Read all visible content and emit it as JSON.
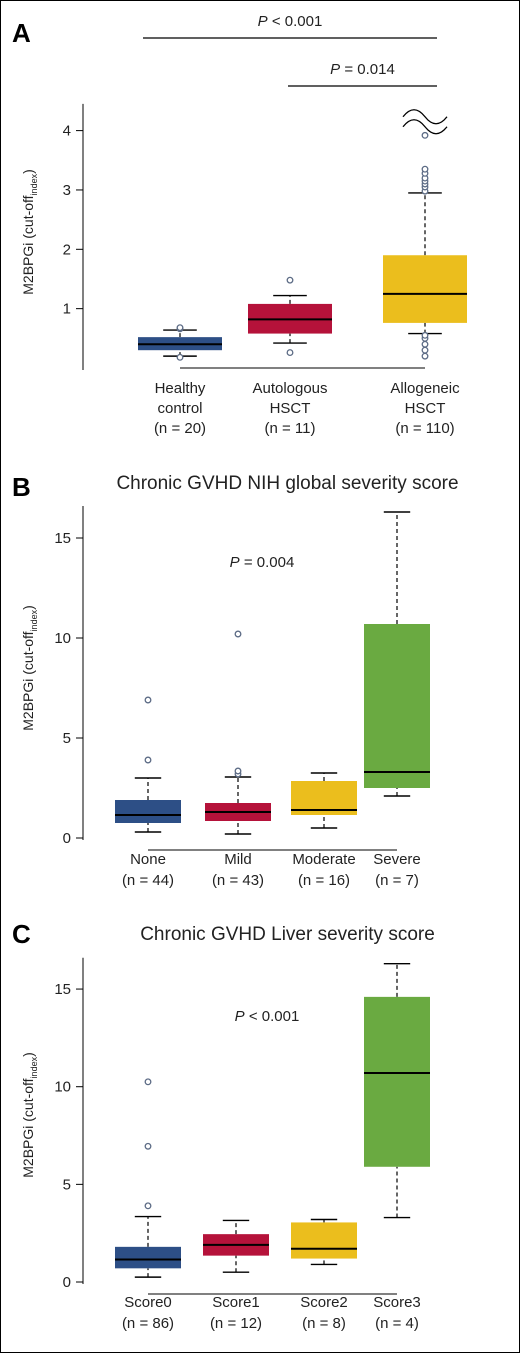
{
  "colors": {
    "blue": "#2d4f86",
    "red": "#b5123a",
    "yellow": "#ebbe1d",
    "green": "#6aaa41",
    "axis": "#000000",
    "outlier": "#5c6b85"
  },
  "chart_data": [
    {
      "type": "box",
      "panel_letter": "A",
      "title": "",
      "ylabel_main": "M2BPGi (cut-off",
      "ylabel_sub": "index",
      "ylabel_close": ")",
      "ylim": [
        0,
        4.6
      ],
      "yticks": [
        1,
        2,
        3,
        4
      ],
      "axis_break_at": 4.2,
      "categories": [
        {
          "lines": [
            "Healthy",
            "control",
            "(n = 20)"
          ],
          "color": "blue",
          "whisker_low": 0.2,
          "q1": 0.3,
          "median": 0.4,
          "q3": 0.52,
          "whisker_high": 0.64,
          "outliers": [
            0.18,
            0.66,
            0.68
          ]
        },
        {
          "lines": [
            "Autologous",
            "HSCT",
            "(n = 11)"
          ],
          "color": "red",
          "whisker_low": 0.42,
          "q1": 0.58,
          "median": 0.82,
          "q3": 1.08,
          "whisker_high": 1.22,
          "outliers": [
            0.26,
            1.48
          ]
        },
        {
          "lines": [
            "Allogeneic",
            "HSCT",
            "(n = 110)"
          ],
          "color": "yellow",
          "whisker_low": 0.58,
          "q1": 0.76,
          "median": 1.25,
          "q3": 1.9,
          "whisker_high": 2.95,
          "outliers": [
            0.2,
            0.3,
            0.4,
            0.5,
            0.55,
            2.98,
            3.05,
            3.1,
            3.15,
            3.2,
            3.28,
            3.35,
            3.92
          ]
        }
      ],
      "brackets": [
        {
          "from": 0,
          "to": 2,
          "p_italic": "P",
          "p_rest": " < 0.001"
        },
        {
          "from": 1,
          "to": 2,
          "p_italic": "P",
          "p_rest": " = 0.014"
        }
      ]
    },
    {
      "type": "box",
      "panel_letter": "B",
      "title": "Chronic GVHD NIH global severity score",
      "ylabel_main": "M2BPGi (cut-off",
      "ylabel_sub": "index",
      "ylabel_close": ")",
      "ylim": [
        0,
        17
      ],
      "yticks": [
        0,
        5,
        10,
        15
      ],
      "p_italic": "P",
      "p_rest": " = 0.004",
      "categories": [
        {
          "lines": [
            "None",
            "(n = 44)"
          ],
          "color": "blue",
          "whisker_low": 0.3,
          "q1": 0.75,
          "median": 1.15,
          "q3": 1.9,
          "whisker_high": 3.0,
          "outliers": [
            3.9,
            6.9
          ]
        },
        {
          "lines": [
            "Mild",
            "(n = 43)"
          ],
          "color": "red",
          "whisker_low": 0.2,
          "q1": 0.85,
          "median": 1.3,
          "q3": 1.75,
          "whisker_high": 3.05,
          "outliers": [
            3.2,
            3.35,
            10.2
          ]
        },
        {
          "lines": [
            "Moderate",
            "(n = 16)"
          ],
          "color": "yellow",
          "whisker_low": 0.5,
          "q1": 1.15,
          "median": 1.4,
          "q3": 2.85,
          "whisker_high": 3.25,
          "outliers": []
        },
        {
          "lines": [
            "Severe",
            "(n = 7)"
          ],
          "color": "green",
          "whisker_low": 2.1,
          "q1": 2.5,
          "median": 3.3,
          "q3": 10.7,
          "whisker_high": 16.3,
          "outliers": []
        }
      ]
    },
    {
      "type": "box",
      "panel_letter": "C",
      "title": "Chronic GVHD Liver severity score",
      "ylabel_main": "M2BPGi (cut-off",
      "ylabel_sub": "index",
      "ylabel_close": ")",
      "ylim": [
        0,
        17
      ],
      "yticks": [
        0,
        5,
        10,
        15
      ],
      "p_italic": "P",
      "p_rest": " < 0.001",
      "categories": [
        {
          "lines": [
            "Score0",
            "(n = 86)"
          ],
          "color": "blue",
          "whisker_low": 0.25,
          "q1": 0.7,
          "median": 1.15,
          "q3": 1.8,
          "whisker_high": 3.35,
          "outliers": [
            3.9,
            6.95,
            10.25
          ]
        },
        {
          "lines": [
            "Score1",
            "(n = 12)"
          ],
          "color": "red",
          "whisker_low": 0.5,
          "q1": 1.35,
          "median": 1.9,
          "q3": 2.45,
          "whisker_high": 3.15,
          "outliers": []
        },
        {
          "lines": [
            "Score2",
            "(n = 8)"
          ],
          "color": "yellow",
          "whisker_low": 0.9,
          "q1": 1.2,
          "median": 1.7,
          "q3": 3.05,
          "whisker_high": 3.2,
          "outliers": []
        },
        {
          "lines": [
            "Score3",
            "(n = 4)"
          ],
          "color": "green",
          "whisker_low": 3.3,
          "q1": 5.9,
          "median": 10.7,
          "q3": 14.6,
          "whisker_high": 16.3,
          "outliers": []
        }
      ]
    }
  ]
}
